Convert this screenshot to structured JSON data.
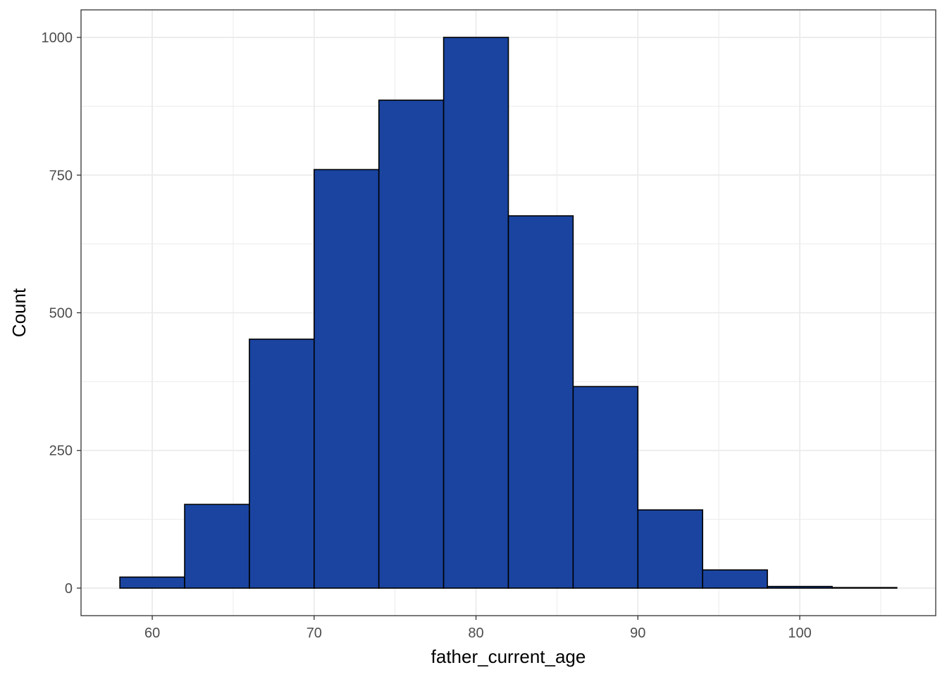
{
  "chart_data": {
    "type": "bar",
    "subtype": "histogram",
    "xlabel": "father_current_age",
    "ylabel": "Count",
    "bin_width": 4,
    "bins": [
      {
        "x0": 58,
        "x1": 62,
        "count": 20
      },
      {
        "x0": 62,
        "x1": 66,
        "count": 152
      },
      {
        "x0": 66,
        "x1": 70,
        "count": 452
      },
      {
        "x0": 70,
        "x1": 74,
        "count": 760
      },
      {
        "x0": 74,
        "x1": 78,
        "count": 886
      },
      {
        "x0": 78,
        "x1": 82,
        "count": 1000
      },
      {
        "x0": 82,
        "x1": 86,
        "count": 676
      },
      {
        "x0": 86,
        "x1": 90,
        "count": 366
      },
      {
        "x0": 90,
        "x1": 94,
        "count": 142
      },
      {
        "x0": 94,
        "x1": 98,
        "count": 33
      },
      {
        "x0": 98,
        "x1": 102,
        "count": 3
      },
      {
        "x0": 102,
        "x1": 106,
        "count": 1
      }
    ],
    "xlim": [
      55.6,
      108.4
    ],
    "ylim": [
      -50,
      1050
    ],
    "x_ticks": [
      60,
      70,
      80,
      90,
      100
    ],
    "x_tick_labels": [
      "60",
      "70",
      "80",
      "90",
      "100"
    ],
    "y_ticks": [
      0,
      250,
      500,
      750,
      1000
    ],
    "y_tick_labels": [
      "0",
      "250",
      "500",
      "750",
      "1000"
    ],
    "grid": true,
    "bar_color": "#1A44A0",
    "bar_outline": "#000000",
    "grid_color": "#EBEBEB",
    "panel_border": "#333333"
  }
}
